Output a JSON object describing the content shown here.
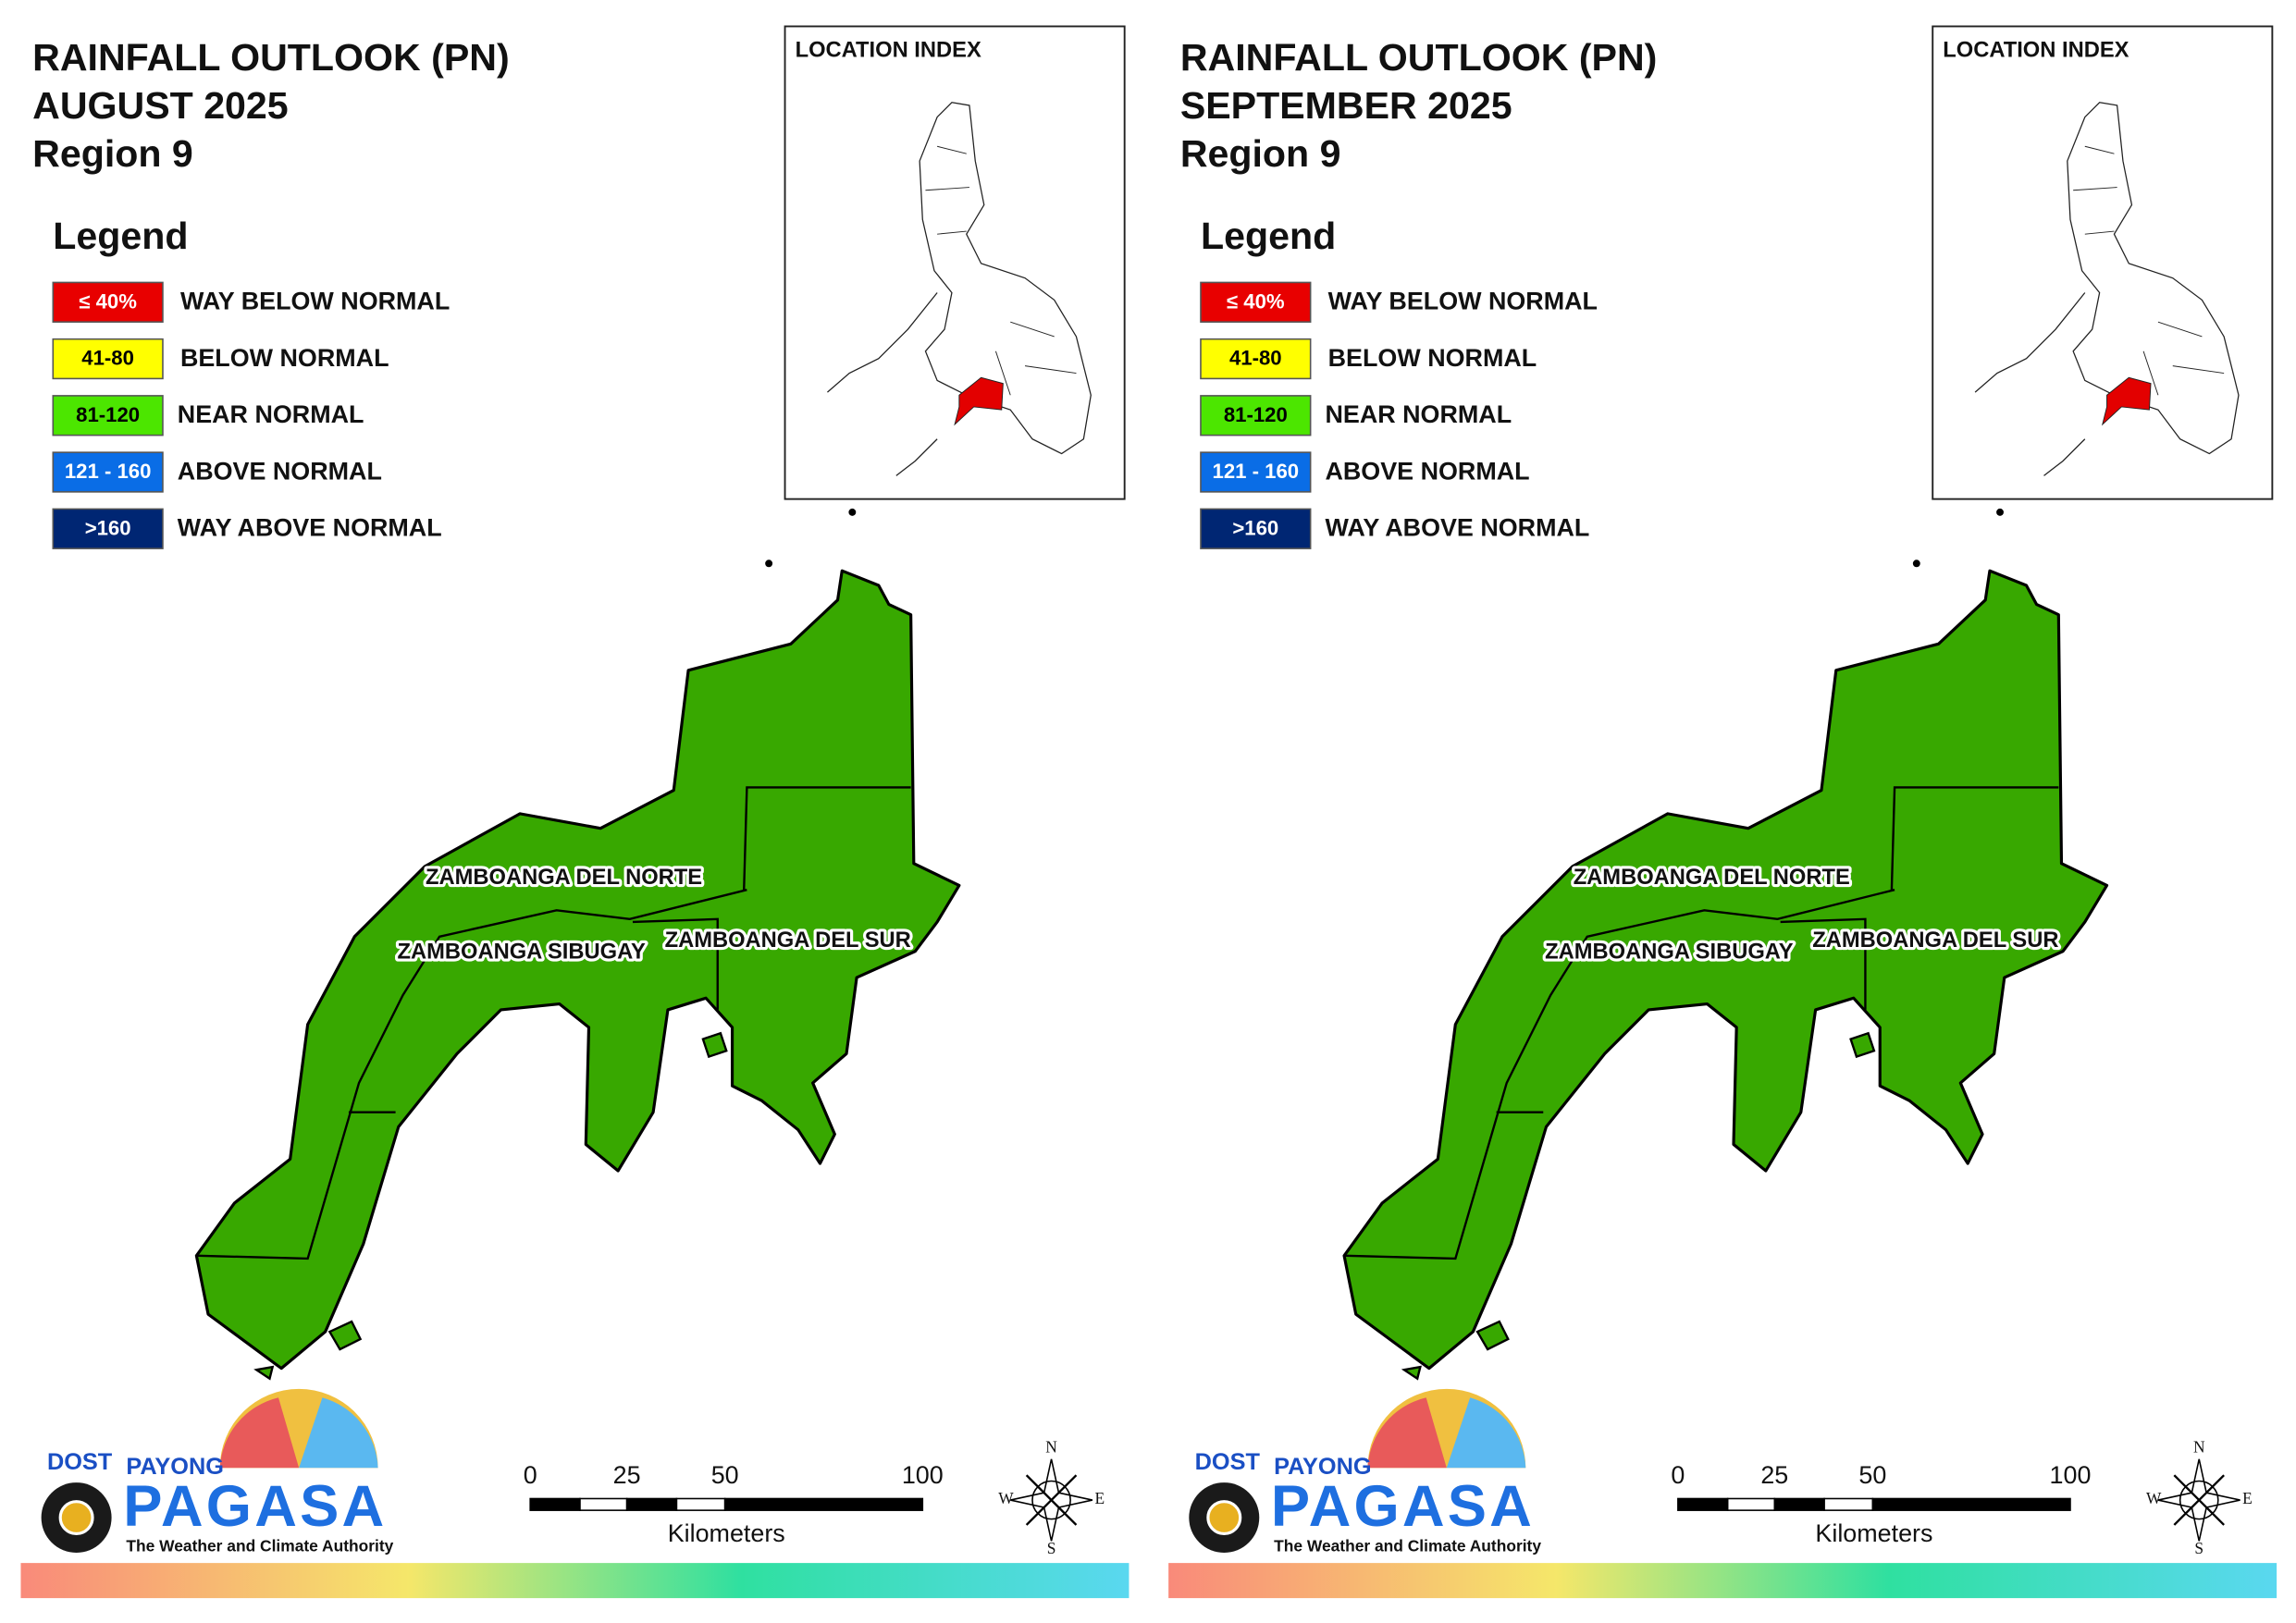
{
  "panels": [
    {
      "title": [
        "RAINFALL OUTLOOK (PN)",
        "AUGUST 2025",
        "Region 9"
      ],
      "legend": {
        "title": "Legend",
        "items": [
          {
            "range": "≤ 40%",
            "label": "WAY BELOW NORMAL"
          },
          {
            "range": "41-80",
            "label": "BELOW NORMAL"
          },
          {
            "range": "81-120",
            "label": "NEAR NORMAL"
          },
          {
            "range": "121 - 160",
            "label": "ABOVE NORMAL"
          },
          {
            "range": ">160",
            "label": "WAY ABOVE NORMAL"
          }
        ]
      },
      "inset_title": "LOCATION INDEX",
      "provinces": [
        "ZAMBOANGA DEL NORTE",
        "ZAMBOANGA SIBUGAY",
        "ZAMBOANGA DEL SUR"
      ],
      "logo": {
        "agency": "DOST",
        "top": "PAYONG",
        "name": "PAGASA",
        "tagline": "The Weather and Climate Authority"
      },
      "scale": {
        "ticks": [
          "0",
          "25",
          "50",
          "100"
        ],
        "unit": "Kilometers"
      },
      "compass": [
        "N",
        "E",
        "S",
        "W"
      ]
    },
    {
      "title": [
        "RAINFALL OUTLOOK (PN)",
        "SEPTEMBER 2025",
        "Region 9"
      ],
      "legend": {
        "title": "Legend",
        "items": [
          {
            "range": "≤ 40%",
            "label": "WAY BELOW NORMAL"
          },
          {
            "range": "41-80",
            "label": "BELOW NORMAL"
          },
          {
            "range": "81-120",
            "label": "NEAR NORMAL"
          },
          {
            "range": "121 - 160",
            "label": "ABOVE NORMAL"
          },
          {
            "range": ">160",
            "label": "WAY ABOVE NORMAL"
          }
        ]
      },
      "inset_title": "LOCATION INDEX",
      "provinces": [
        "ZAMBOANGA DEL NORTE",
        "ZAMBOANGA SIBUGAY",
        "ZAMBOANGA DEL SUR"
      ],
      "logo": {
        "agency": "DOST",
        "top": "PAYONG",
        "name": "PAGASA",
        "tagline": "The Weather and Climate Authority"
      },
      "scale": {
        "ticks": [
          "0",
          "25",
          "50",
          "100"
        ],
        "unit": "Kilometers"
      },
      "compass": [
        "N",
        "E",
        "S",
        "W"
      ]
    }
  ]
}
